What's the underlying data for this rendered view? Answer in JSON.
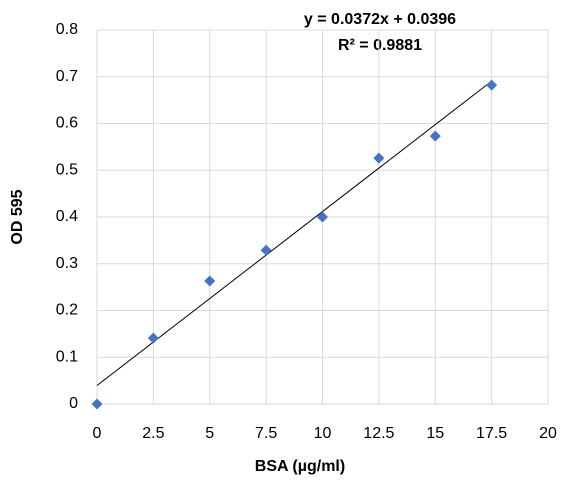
{
  "chart_data": {
    "type": "scatter",
    "x_label": "BSA (µg/ml)",
    "y_label": "OD 595",
    "x": [
      0,
      2.5,
      5,
      7.5,
      10,
      12.5,
      15,
      17.5
    ],
    "values": [
      0,
      0.141,
      0.263,
      0.329,
      0.4,
      0.526,
      0.573,
      0.682
    ],
    "color": "#4472c4",
    "marker": "diamond",
    "trendline": {
      "slope": 0.0372,
      "intercept": 0.0396,
      "label": "y = 0.0372x + 0.0396",
      "r2_label": "R² = 0.9881"
    },
    "xlim": [
      0,
      20
    ],
    "xticks": [
      0,
      2.5,
      5,
      7.5,
      10,
      12.5,
      15,
      17.5,
      20
    ],
    "ylim": [
      0,
      0.8
    ],
    "yticks": [
      0,
      0.1,
      0.2,
      0.3,
      0.4,
      0.5,
      0.6,
      0.7,
      0.8
    ],
    "grid": true
  }
}
